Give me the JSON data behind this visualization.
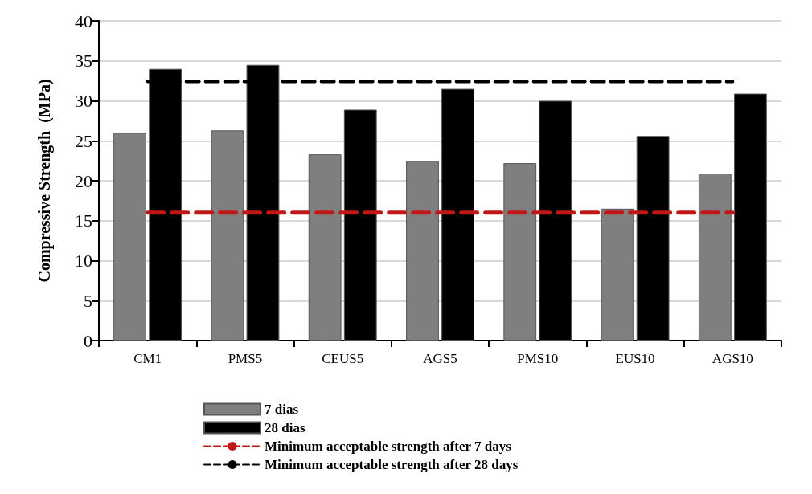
{
  "chart_data": {
    "type": "bar",
    "ylabel": "Compressive Strength  (MPa)",
    "categories": [
      "CM1",
      "PMS5",
      "CEUS5",
      "AGS5",
      "PMS10",
      "EUS10",
      "AGS10"
    ],
    "series": [
      {
        "name": "7 dias",
        "color": "#7f7f7f",
        "values": [
          26.0,
          26.3,
          23.3,
          22.5,
          22.2,
          16.5,
          20.9
        ]
      },
      {
        "name": "28 dias",
        "color": "#000000",
        "values": [
          34.0,
          34.5,
          28.9,
          31.5,
          30.0,
          25.6,
          30.9
        ]
      }
    ],
    "ref_lines": [
      {
        "axis": "y",
        "value": 16,
        "label": "Minimum acceptable strength after 7 days",
        "color": "#c0181a",
        "line_style": "dashed"
      },
      {
        "axis": "y",
        "value": 32.4,
        "label": "Minimum acceptable strength after 28 days",
        "color": "#000000",
        "line_style": "dashed"
      }
    ],
    "ylim": [
      0,
      40
    ],
    "yticks": [
      0,
      5,
      10,
      15,
      20,
      25,
      30,
      35,
      40
    ],
    "grid": "y",
    "legend": "bottom"
  }
}
